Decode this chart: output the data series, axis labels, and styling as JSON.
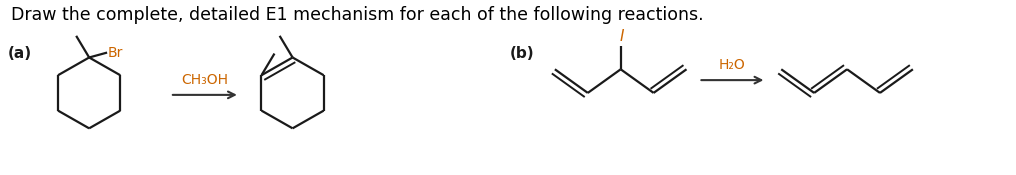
{
  "title_text": "Draw the complete, detailed E1 mechanism for each of the following reactions.",
  "title_color": "#000000",
  "title_fontsize": 12.5,
  "background_color": "#ffffff",
  "label_a": "(a)",
  "label_b": "(b)",
  "reagent_a": "CH₃OH",
  "reagent_b": "H₂O",
  "br_label": "Br",
  "i_label": "I",
  "reagent_color": "#cc6600",
  "line_color": "#1a1a1a",
  "arrow_color": "#333333"
}
